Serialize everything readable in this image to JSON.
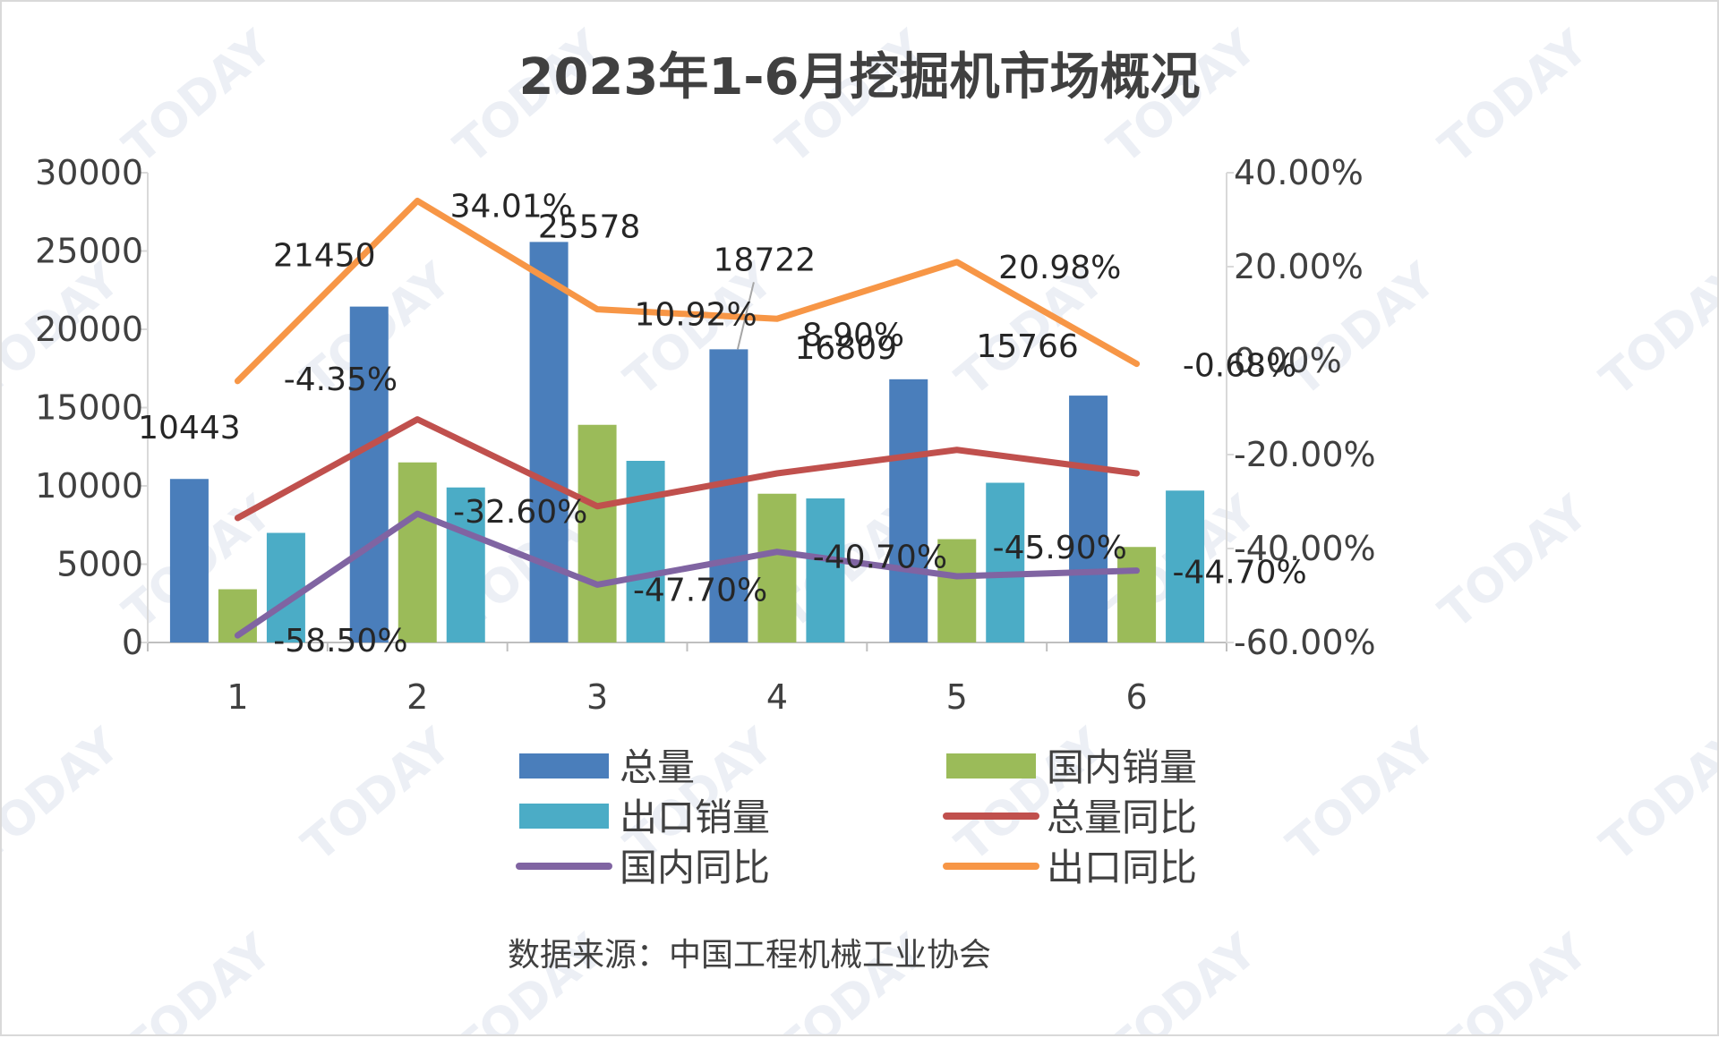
{
  "chart_data": {
    "type": "bar",
    "title": "2023年1-6月挖掘机市场概况",
    "categories": [
      "1",
      "2",
      "3",
      "4",
      "5",
      "6"
    ],
    "y_left": {
      "ylim": [
        0,
        30000
      ],
      "ticks": [
        "0",
        "5000",
        "10000",
        "15000",
        "20000",
        "25000",
        "30000"
      ]
    },
    "y_right": {
      "ylim": [
        -60,
        40
      ],
      "ticks": [
        "-60.00%",
        "-40.00%",
        "-20.00%",
        "0.00%",
        "20.00%",
        "40.00%"
      ]
    },
    "bar_series": [
      {
        "name": "总量",
        "color": "#4a7ebb",
        "values": [
          10443,
          21450,
          25578,
          18722,
          16809,
          15766
        ],
        "data_labels": [
          "10443",
          "21450",
          "25578",
          "18722",
          "16809",
          "15766"
        ]
      },
      {
        "name": "国内销量",
        "color": "#9bbb59",
        "values": [
          3400,
          11500,
          13900,
          9500,
          6600,
          6100
        ]
      },
      {
        "name": "出口销量",
        "color": "#4bacc6",
        "values": [
          7000,
          9900,
          11600,
          9200,
          10200,
          9700
        ]
      }
    ],
    "line_series": [
      {
        "name": "总量同比",
        "color": "#c0504d",
        "values": [
          -33.5,
          -12.5,
          -31.0,
          -24.0,
          -19.0,
          -24.0
        ]
      },
      {
        "name": "国内同比",
        "color": "#8064a2",
        "values": [
          -58.5,
          -32.6,
          -47.7,
          -40.7,
          -45.9,
          -44.7
        ],
        "data_labels": [
          "-58.50%",
          "-32.60%",
          "-47.70%",
          "-40.70%",
          "-45.90%",
          "-44.70%"
        ]
      },
      {
        "name": "出口同比",
        "color": "#f79646",
        "values": [
          -4.35,
          34.01,
          10.92,
          8.9,
          20.98,
          -0.68
        ],
        "data_labels": [
          "-4.35%",
          "34.01%",
          "10.92%",
          "8.90%",
          "20.98%",
          "-0.68%"
        ]
      }
    ],
    "legend": {
      "placement": "bottom",
      "order": [
        "总量",
        "国内销量",
        "出口销量",
        "总量同比",
        "国内同比",
        "出口同比"
      ]
    },
    "grid": false
  },
  "source_note": "数据来源：中国工程机械工业协会",
  "watermark_text": "TODAY"
}
